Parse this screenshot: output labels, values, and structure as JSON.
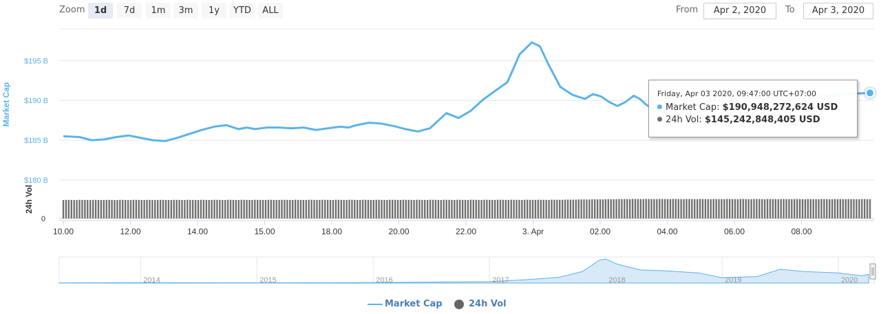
{
  "toolbar": {
    "zoom_label": "Zoom",
    "zoom_buttons": [
      "1d",
      "7d",
      "1m",
      "3m",
      "1y",
      "YTD",
      "ALL"
    ],
    "active_zoom": "1d",
    "from_label": "From",
    "from_value": "Apr 2, 2020",
    "to_label": "To",
    "to_value": "Apr 3, 2020"
  },
  "colors": {
    "market_cap": "#5bb3e8",
    "volume": "#707070",
    "accent": "#4a7fb5"
  },
  "tooltip": {
    "date": "Friday, Apr 03 2020, 09:47:00 UTC+07:00",
    "market_cap_label": "Market Cap:",
    "market_cap_value": "$190,948,272,624 USD",
    "volume_label": "24h Vol:",
    "volume_value": "$145,242,848,405 USD"
  },
  "legend": {
    "market_cap": "Market Cap",
    "volume": "24h Vol"
  },
  "chart_data": [
    {
      "type": "line",
      "title": "",
      "series": [
        {
          "name": "Market Cap",
          "unit": "USD billions",
          "x": [
            10.0,
            10.4,
            10.7,
            11.0,
            11.3,
            11.6,
            11.9,
            12.2,
            12.5,
            12.8,
            13.1,
            13.4,
            13.7,
            14.0,
            14.3,
            14.5,
            14.7,
            15.0,
            15.3,
            15.6,
            15.9,
            16.2,
            16.5,
            16.8,
            17.0,
            17.2,
            17.5,
            17.8,
            18.1,
            18.4,
            18.7,
            19.0,
            19.4,
            19.7,
            20.0,
            20.3,
            20.6,
            20.9,
            21.2,
            21.5,
            21.7,
            21.9,
            22.2,
            22.5,
            22.8,
            23.0,
            23.2,
            23.4,
            23.6,
            23.8,
            24.0,
            24.15,
            24.3,
            24.45,
            24.6,
            24.8,
            25.0,
            25.2,
            25.4,
            25.6,
            25.8,
            26.0,
            26.3,
            26.6,
            26.9,
            27.2,
            27.5,
            27.8,
            28.1,
            28.4,
            28.7,
            29.0,
            29.3,
            29.6,
            29.8
          ],
          "values": [
            185.5,
            185.4,
            185.0,
            185.1,
            185.4,
            185.6,
            185.3,
            185.0,
            184.9,
            185.3,
            185.8,
            186.3,
            186.7,
            186.9,
            186.4,
            186.6,
            186.4,
            186.6,
            186.6,
            186.5,
            186.6,
            186.3,
            186.5,
            186.7,
            186.6,
            186.9,
            187.2,
            187.1,
            186.8,
            186.4,
            186.1,
            186.5,
            188.4,
            187.8,
            188.7,
            190.1,
            191.2,
            192.3,
            195.8,
            197.3,
            196.8,
            194.6,
            191.7,
            190.7,
            190.2,
            190.8,
            190.5,
            189.8,
            189.3,
            189.8,
            190.6,
            190.2,
            189.5,
            189.0,
            188.8,
            188.3,
            188.7,
            189.2,
            188.9,
            189.4,
            189.6,
            190.1,
            189.8,
            190.3,
            190.5,
            190.2,
            190.4,
            190.6,
            190.5,
            190.7,
            190.6,
            190.7,
            190.8,
            190.9,
            190.95
          ]
        }
      ],
      "x_ticks": [
        "10.00",
        "12.00",
        "14.00",
        "15.00",
        "18.00",
        "20.00",
        "22.00",
        "3. Apr",
        "02.00",
        "04.00",
        "06.00",
        "08.00"
      ],
      "y_ticks": [
        "$180 B",
        "$185 B",
        "$190 B",
        "$195 B"
      ],
      "ylabel": "Market Cap",
      "ylim": [
        180,
        199
      ],
      "grid": true
    },
    {
      "type": "bar",
      "series": [
        {
          "name": "24h Vol",
          "unit": "USD billions",
          "x_range": [
            10.0,
            29.8
          ],
          "values_at": [
            [
              10.0,
              139
            ],
            [
              22.0,
              140
            ],
            [
              24.0,
              146
            ],
            [
              29.8,
              145
            ]
          ]
        }
      ],
      "y_ticks": [
        "0"
      ],
      "ylabel": "24h Vol",
      "ylim": [
        0,
        250
      ]
    },
    {
      "type": "area",
      "title": "",
      "x_ticks": [
        "2014",
        "2015",
        "2016",
        "2017",
        "2018",
        "2019",
        "2020"
      ],
      "series": [
        {
          "name": "Market Cap",
          "x": [
            2013.3,
            2014.0,
            2015.0,
            2016.0,
            2016.5,
            2017.0,
            2017.3,
            2017.6,
            2017.8,
            2017.95,
            2018.0,
            2018.1,
            2018.3,
            2018.5,
            2018.8,
            2019.0,
            2019.3,
            2019.5,
            2019.7,
            2020.0,
            2020.2,
            2020.26
          ],
          "values": [
            2,
            6,
            4,
            7,
            13,
            20,
            45,
            80,
            160,
            320,
            330,
            260,
            180,
            170,
            140,
            75,
            90,
            190,
            160,
            140,
            100,
            120
          ]
        }
      ]
    }
  ]
}
